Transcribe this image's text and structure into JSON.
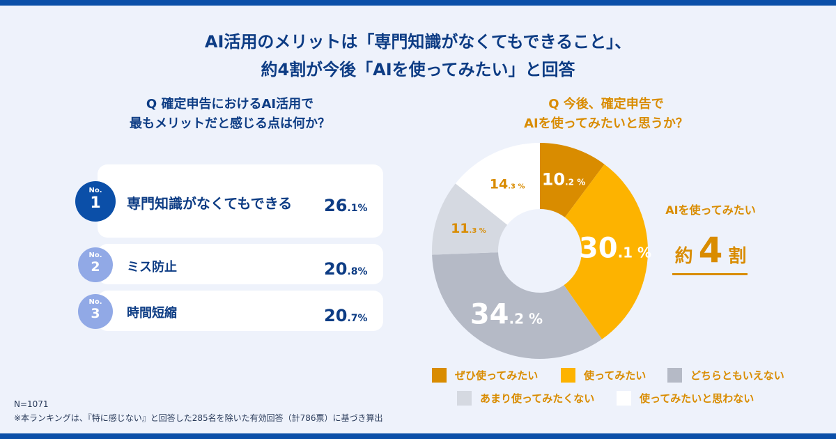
{
  "title": {
    "line1": "AI活用のメリットは「専門知識がなくてもできること」、",
    "line2": "約4割が今後「AIを使ってみたい」と回答"
  },
  "left": {
    "question_line1": "Q 確定申告におけるAI活用で",
    "question_line2": "最もメリットだと感じる点は何か？",
    "ranking": [
      {
        "no": "No.",
        "rank": "1",
        "label": "専門知識がなくてもできる",
        "int": "26",
        "dec": ".1",
        "unit": "%"
      },
      {
        "no": "No.",
        "rank": "2",
        "label": "ミス防止",
        "int": "20",
        "dec": ".8",
        "unit": "%"
      },
      {
        "no": "No.",
        "rank": "3",
        "label": "時間短縮",
        "int": "20",
        "dec": ".7",
        "unit": "%"
      }
    ]
  },
  "notes": {
    "n": "N=1071",
    "footnote": "※本ランキングは、『特に感じない』と回答した285名を除いた有効回答（計786票）に基づき算出"
  },
  "callout": {
    "label": "AIを使ってみたい",
    "prefix": "約",
    "number": "4",
    "suffix": "割"
  },
  "colors": {
    "accent": "#d98c00",
    "brand": "#0b4fa8"
  },
  "chart_data": {
    "type": "pie",
    "donut": true,
    "title": "Q 今後、確定申告でAIを使ってみたいと思うか？",
    "question_line1": "Q 今後、確定申告で",
    "question_line2": "AIを使ってみたいと思うか？",
    "unit": "%",
    "categories": [
      "ぜひ使ってみたい",
      "使ってみたい",
      "どちらともいえない",
      "あまり使ってみたくない",
      "使ってみたいと思わない"
    ],
    "values": [
      10.2,
      30.1,
      34.2,
      11.3,
      14.3
    ],
    "colors": [
      "#d98c00",
      "#fdb300",
      "#b5bac6",
      "#d5d9e1",
      "#ffffff"
    ],
    "label_colors": [
      "#ffffff",
      "#ffffff",
      "#ffffff",
      "#d98c00",
      "#d98c00"
    ],
    "legend_placement": "bottom"
  }
}
